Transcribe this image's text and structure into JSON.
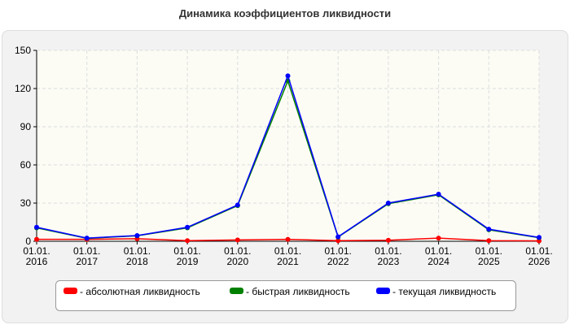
{
  "chart_data": {
    "type": "line",
    "title": "Динамика коэффициентов ликвидности",
    "categories": [
      "01.01. 2016",
      "01.01. 2017",
      "01.01. 2018",
      "01.01. 2019",
      "01.01. 2020",
      "01.01. 2021",
      "01.01. 2022",
      "01.01. 2023",
      "01.01. 2024",
      "01.01. 2025",
      "01.01. 2026"
    ],
    "series": [
      {
        "name": "- абсолютная ликвидность",
        "color": "#ff0000",
        "values": [
          1.5,
          1.5,
          2,
          0.5,
          1,
          1.5,
          0.5,
          0.8,
          2.5,
          0.5,
          0.3
        ]
      },
      {
        "name": "- быстрая ликвидность",
        "color": "#008000",
        "values": [
          10.5,
          2.3,
          4.3,
          10.5,
          28,
          126,
          3.3,
          29.5,
          36.5,
          9,
          2.8
        ]
      },
      {
        "name": "- текущая ликвидность",
        "color": "#0000ff",
        "values": [
          11,
          2.5,
          4.5,
          11,
          28.5,
          130,
          3.5,
          30,
          37,
          9.5,
          3
        ]
      }
    ],
    "ylim": [
      0,
      150
    ],
    "yticks": [
      0,
      30,
      60,
      90,
      120,
      150
    ],
    "grid": true,
    "legend": "bottom"
  }
}
